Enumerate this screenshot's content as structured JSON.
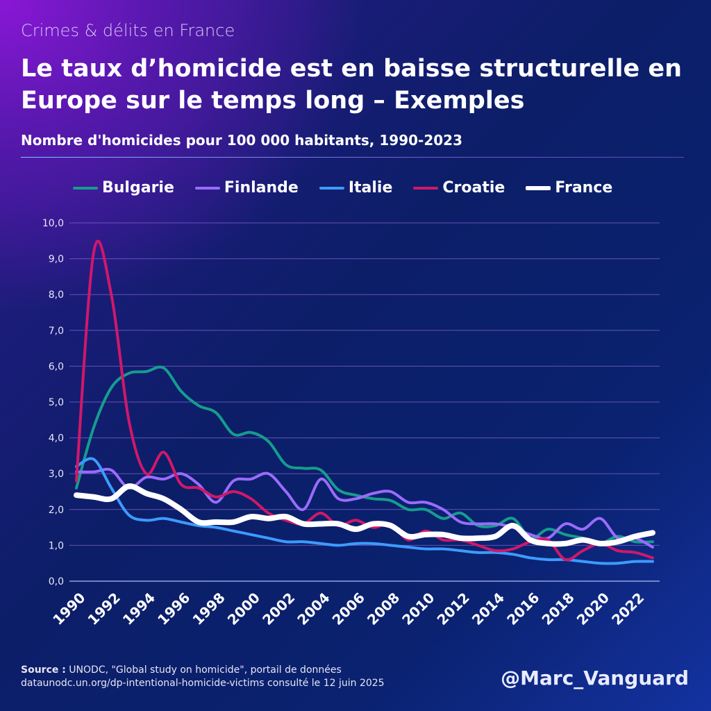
{
  "kicker": "Crimes & délits en France",
  "title": "Le taux d’homicide est en baisse structurelle en Europe sur le temps long – Exemples",
  "subtitle": "Nombre d'homicides pour 100 000 habitants, 1990-2023",
  "source": {
    "label": "Source :",
    "text": " UNODC, \"Global study on homicide\", portail de données",
    "line2": "dataunodc.un.org/dp-intentional-homicide-victims consulté le 12 juin 2025"
  },
  "handle": "@Marc_Vanguard",
  "chart_data": {
    "type": "line",
    "title": "Nombre d'homicides pour 100 000 habitants, 1990-2023",
    "x": [
      1990,
      1991,
      1992,
      1993,
      1994,
      1995,
      1996,
      1997,
      1998,
      1999,
      2000,
      2001,
      2002,
      2003,
      2004,
      2005,
      2006,
      2007,
      2008,
      2009,
      2010,
      2011,
      2012,
      2013,
      2014,
      2015,
      2016,
      2017,
      2018,
      2019,
      2020,
      2021,
      2022,
      2023
    ],
    "xticks": [
      "1990",
      "1992",
      "1994",
      "1996",
      "1998",
      "2000",
      "2002",
      "2004",
      "2006",
      "2008",
      "2010",
      "2012",
      "2014",
      "2016",
      "2018",
      "2020",
      "2022"
    ],
    "yticks": [
      "0,0",
      "1,0",
      "2,0",
      "3,0",
      "4,0",
      "5,0",
      "6,0",
      "7,0",
      "8,0",
      "9,0",
      "10,0"
    ],
    "ylim": [
      0,
      10
    ],
    "grid": true,
    "legend_position": "top",
    "series": [
      {
        "name": "Bulgarie",
        "color": "#169c8e",
        "values": [
          2.6,
          4.3,
          5.4,
          5.8,
          5.85,
          5.95,
          5.3,
          4.9,
          4.7,
          4.1,
          4.15,
          3.9,
          3.25,
          3.15,
          3.1,
          2.55,
          2.4,
          2.3,
          2.25,
          2.0,
          2.0,
          1.75,
          1.9,
          1.55,
          1.55,
          1.75,
          1.2,
          1.45,
          1.3,
          1.2,
          1.05,
          1.25,
          1.1,
          1.1
        ]
      },
      {
        "name": "Finlande",
        "color": "#9b6bff",
        "values": [
          3.05,
          3.05,
          3.1,
          2.6,
          2.9,
          2.85,
          3.0,
          2.7,
          2.2,
          2.8,
          2.85,
          3.0,
          2.5,
          2.0,
          2.85,
          2.3,
          2.3,
          2.45,
          2.5,
          2.2,
          2.2,
          2.0,
          1.65,
          1.6,
          1.6,
          1.5,
          1.3,
          1.2,
          1.6,
          1.45,
          1.75,
          1.2,
          1.2,
          0.95
        ]
      },
      {
        "name": "Italie",
        "color": "#3c9bff",
        "values": [
          3.2,
          3.4,
          2.6,
          1.85,
          1.7,
          1.75,
          1.65,
          1.55,
          1.5,
          1.4,
          1.3,
          1.2,
          1.1,
          1.1,
          1.05,
          1.0,
          1.05,
          1.05,
          1.0,
          0.95,
          0.9,
          0.9,
          0.85,
          0.8,
          0.8,
          0.75,
          0.65,
          0.6,
          0.6,
          0.55,
          0.5,
          0.5,
          0.55,
          0.55
        ]
      },
      {
        "name": "Croatie",
        "color": "#d0186a",
        "values": [
          2.8,
          9.2,
          8.0,
          4.5,
          3.0,
          3.6,
          2.7,
          2.6,
          2.35,
          2.5,
          2.3,
          1.9,
          1.7,
          1.6,
          1.9,
          1.55,
          1.7,
          1.5,
          1.6,
          1.15,
          1.4,
          1.15,
          1.15,
          1.0,
          0.85,
          0.9,
          1.1,
          1.15,
          0.6,
          0.85,
          1.05,
          0.85,
          0.8,
          0.65
        ]
      },
      {
        "name": "France",
        "color": "#ffffff",
        "values": [
          2.4,
          2.35,
          2.3,
          2.65,
          2.45,
          2.3,
          2.0,
          1.65,
          1.65,
          1.65,
          1.8,
          1.75,
          1.8,
          1.6,
          1.6,
          1.6,
          1.45,
          1.6,
          1.55,
          1.25,
          1.3,
          1.3,
          1.2,
          1.2,
          1.25,
          1.55,
          1.15,
          1.05,
          1.05,
          1.15,
          1.05,
          1.1,
          1.25,
          1.35
        ]
      }
    ]
  }
}
